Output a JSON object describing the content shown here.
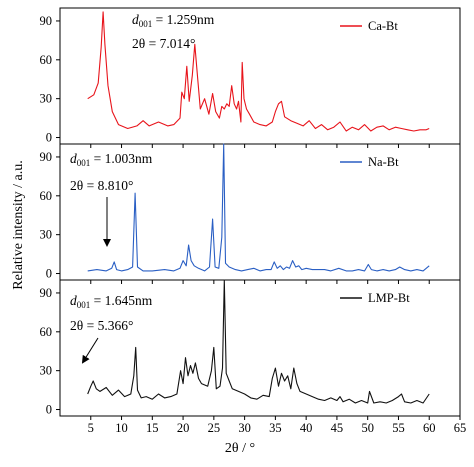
{
  "chart_data": {
    "type": "line",
    "xlabel": "2θ / °",
    "ylabel": "Relative intensity / a.u.",
    "xlim": [
      0,
      65
    ],
    "xticks": [
      5,
      10,
      15,
      20,
      25,
      30,
      35,
      40,
      45,
      50,
      55,
      60,
      65
    ],
    "ylim": [
      -5,
      100
    ],
    "yticks": [
      0,
      30,
      60,
      90
    ],
    "grid": false,
    "panels": [
      {
        "name": "Ca-Bt",
        "color": "#e8141b",
        "legend_position": "top-right",
        "annotation": {
          "d_label": "d",
          "d_sub": "001",
          "d_value": " = 1.259nm",
          "theta_label": "2θ = 7.014°"
        },
        "series": {
          "x": [
            4.5,
            5.5,
            6.2,
            6.7,
            7.0,
            7.3,
            7.8,
            8.5,
            9.5,
            11,
            12.5,
            13.5,
            14.5,
            16,
            17.5,
            18.5,
            19.5,
            19.8,
            20.2,
            20.6,
            21.0,
            21.5,
            21.9,
            22.3,
            22.8,
            23.5,
            24.2,
            24.8,
            25.3,
            25.9,
            26.3,
            26.7,
            27.1,
            27.5,
            27.9,
            28.3,
            28.7,
            29.0,
            29.4,
            29.6,
            29.9,
            30.3,
            30.8,
            31.5,
            32.5,
            33.5,
            34.5,
            35.0,
            35.5,
            36.0,
            36.5,
            37.5,
            38.5,
            39.5,
            40.5,
            41.5,
            42.5,
            43.5,
            44.5,
            45.5,
            46.5,
            47.5,
            48.5,
            49.5,
            50.5,
            51.5,
            52.5,
            53.5,
            54.5,
            55.5,
            56.5,
            57.5,
            58.5,
            59.5,
            60
          ],
          "y": [
            30,
            33,
            42,
            70,
            97,
            72,
            40,
            20,
            10,
            7,
            9,
            13,
            9,
            12,
            9,
            10,
            15,
            35,
            30,
            55,
            28,
            48,
            72,
            50,
            22,
            30,
            18,
            34,
            20,
            15,
            24,
            22,
            26,
            24,
            40,
            26,
            22,
            28,
            12,
            58,
            30,
            22,
            18,
            12,
            10,
            9,
            12,
            20,
            26,
            28,
            16,
            13,
            11,
            9,
            13,
            7,
            10,
            6,
            8,
            12,
            5,
            8,
            6,
            10,
            5,
            8,
            9,
            6,
            8,
            7,
            6,
            5,
            6,
            6,
            7
          ]
        }
      },
      {
        "name": "Na-Bt",
        "color": "#2a5fc4",
        "legend_position": "top-right",
        "annotation": {
          "d_label": "d",
          "d_sub": "001",
          "d_value": " = 1.003nm",
          "theta_label": "2θ = 8.810°"
        },
        "series": {
          "x": [
            4.5,
            6,
            7.5,
            8.4,
            8.8,
            9.2,
            10,
            11,
            11.8,
            12.2,
            12.6,
            13.5,
            15,
            17,
            18.5,
            19.5,
            20,
            20.5,
            20.9,
            21.3,
            21.8,
            22.5,
            23.5,
            24.3,
            24.8,
            25.2,
            25.8,
            26.3,
            26.6,
            26.9,
            27.5,
            28.5,
            29.5,
            30.5,
            31.5,
            32.5,
            33.5,
            34.3,
            34.8,
            35.3,
            35.8,
            36.3,
            36.8,
            37.3,
            37.8,
            38.3,
            38.8,
            39.3,
            40,
            41,
            42,
            43,
            44,
            45.3,
            46.5,
            47.5,
            48.5,
            49.5,
            50.1,
            50.6,
            51.5,
            52.5,
            53.5,
            54.5,
            55.2,
            56,
            57,
            58,
            59,
            60
          ],
          "y": [
            2,
            3,
            2,
            4,
            9,
            3,
            2,
            3,
            5,
            62,
            5,
            2,
            2,
            3,
            2,
            4,
            10,
            6,
            22,
            10,
            6,
            4,
            2,
            5,
            42,
            5,
            4,
            28,
            100,
            8,
            5,
            3,
            2,
            3,
            4,
            2,
            3,
            3,
            9,
            4,
            6,
            3,
            5,
            4,
            10,
            5,
            6,
            3,
            4,
            3,
            3,
            3,
            2,
            4,
            2,
            2,
            3,
            2,
            7,
            3,
            2,
            3,
            2,
            3,
            5,
            3,
            2,
            3,
            2,
            6
          ]
        }
      },
      {
        "name": "LMP-Bt",
        "color": "#111111",
        "legend_position": "top-right",
        "annotation": {
          "d_label": "d",
          "d_sub": "001",
          "d_value": " = 1.645nm",
          "theta_label": "2θ = 5.366°"
        },
        "series": {
          "x": [
            4.5,
            5.0,
            5.4,
            5.9,
            6.5,
            7.5,
            8.5,
            9.5,
            10.5,
            11.5,
            12.0,
            12.3,
            12.6,
            13.2,
            14,
            15,
            16,
            17,
            18,
            19,
            19.6,
            20.0,
            20.4,
            20.8,
            21.2,
            21.6,
            22.0,
            22.5,
            23.0,
            24.0,
            24.6,
            25.0,
            25.4,
            26,
            26.4,
            26.7,
            27.0,
            27.5,
            28.0,
            29,
            30,
            31,
            32,
            33,
            34,
            34.5,
            35,
            35.5,
            36,
            36.5,
            37,
            37.5,
            38,
            38.5,
            39,
            40,
            41,
            42,
            43,
            44,
            45,
            45.5,
            46,
            47,
            48,
            49,
            50,
            50.3,
            51,
            52,
            53,
            54,
            55,
            55.5,
            56,
            57,
            58,
            59,
            60
          ],
          "y": [
            12,
            18,
            22,
            16,
            14,
            17,
            11,
            15,
            10,
            12,
            26,
            48,
            15,
            9,
            10,
            8,
            12,
            9,
            10,
            12,
            30,
            20,
            40,
            26,
            34,
            28,
            36,
            24,
            20,
            18,
            30,
            48,
            16,
            18,
            32,
            100,
            28,
            22,
            16,
            14,
            12,
            9,
            8,
            11,
            10,
            24,
            32,
            18,
            28,
            22,
            26,
            16,
            32,
            20,
            14,
            12,
            10,
            8,
            7,
            9,
            7,
            10,
            6,
            8,
            5,
            7,
            5,
            14,
            5,
            6,
            5,
            7,
            10,
            12,
            6,
            5,
            7,
            5,
            12
          ]
        }
      }
    ]
  }
}
